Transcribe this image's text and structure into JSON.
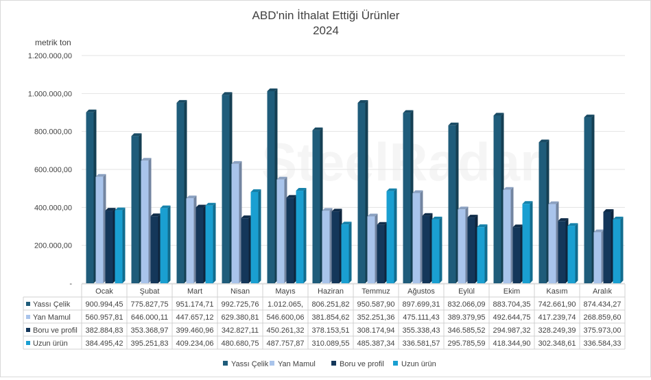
{
  "chart_data": {
    "type": "bar",
    "title": "ABD'nin İthalat Ettiği Ürünler",
    "subtitle": "2024",
    "ylabel": "metrik ton",
    "ylim": [
      0,
      1200000
    ],
    "y_ticks": [
      "-",
      "200.000,00",
      "400.000,00",
      "600.000,00",
      "800.000,00",
      "1.000.000,00",
      "1.200.000,00"
    ],
    "categories": [
      "Ocak",
      "Şubat",
      "Mart",
      "Nisan",
      "Mayıs",
      "Haziran",
      "Temmuz",
      "Ağustos",
      "Eylül",
      "Ekim",
      "Kasım",
      "Aralık"
    ],
    "series": [
      {
        "name": "Yassı Çelik",
        "color": "#1f5c7a",
        "values": [
          900994.45,
          775827.75,
          951174.71,
          992725.76,
          1012065,
          806251.82,
          950587.9,
          897699.31,
          832066.09,
          883704.35,
          742661.9,
          874434.27
        ],
        "labels": [
          "900.994,45",
          "775.827,75",
          "951.174,71",
          "992.725,76",
          "1.012.065,",
          "806.251,82",
          "950.587,90",
          "897.699,31",
          "832.066,09",
          "883.704,35",
          "742.661,90",
          "874.434,27"
        ]
      },
      {
        "name": "Yan Mamul",
        "color": "#a9c4eb",
        "values": [
          560957.81,
          646000.11,
          447657.12,
          629380.81,
          546600.06,
          381854.62,
          352251.36,
          475111.43,
          389379.95,
          492644.75,
          417239.74,
          268859.6
        ],
        "labels": [
          "560.957,81",
          "646.000,11",
          "447.657,12",
          "629.380,81",
          "546.600,06",
          "381.854,62",
          "352.251,36",
          "475.111,43",
          "389.379,95",
          "492.644,75",
          "417.239,74",
          "268.859,60"
        ]
      },
      {
        "name": "Boru ve profil",
        "color": "#14375a",
        "values": [
          382884.83,
          353368.97,
          399460.96,
          342827.11,
          450261.32,
          378153.51,
          308174.94,
          355338.43,
          346585.52,
          294987.32,
          328249.39,
          375973.0
        ],
        "labels": [
          "382.884,83",
          "353.368,97",
          "399.460,96",
          "342.827,11",
          "450.261,32",
          "378.153,51",
          "308.174,94",
          "355.338,43",
          "346.585,52",
          "294.987,32",
          "328.249,39",
          "375.973,00"
        ]
      },
      {
        "name": "Uzun ürün",
        "color": "#1a9fd1",
        "values": [
          384495.42,
          395251.83,
          409234.06,
          480680.75,
          487757.87,
          310089.55,
          485387.34,
          336581.57,
          295785.59,
          418344.9,
          302348.61,
          336584.33
        ],
        "labels": [
          "384.495,42",
          "395.251,83",
          "409.234,06",
          "480.680,75",
          "487.757,87",
          "310.089,55",
          "485.387,34",
          "336.581,57",
          "295.785,59",
          "418.344,90",
          "302.348,61",
          "336.584,33"
        ]
      }
    ],
    "legend_position": "bottom",
    "grid": true
  },
  "watermark": {
    "text": "SteelRadar"
  }
}
